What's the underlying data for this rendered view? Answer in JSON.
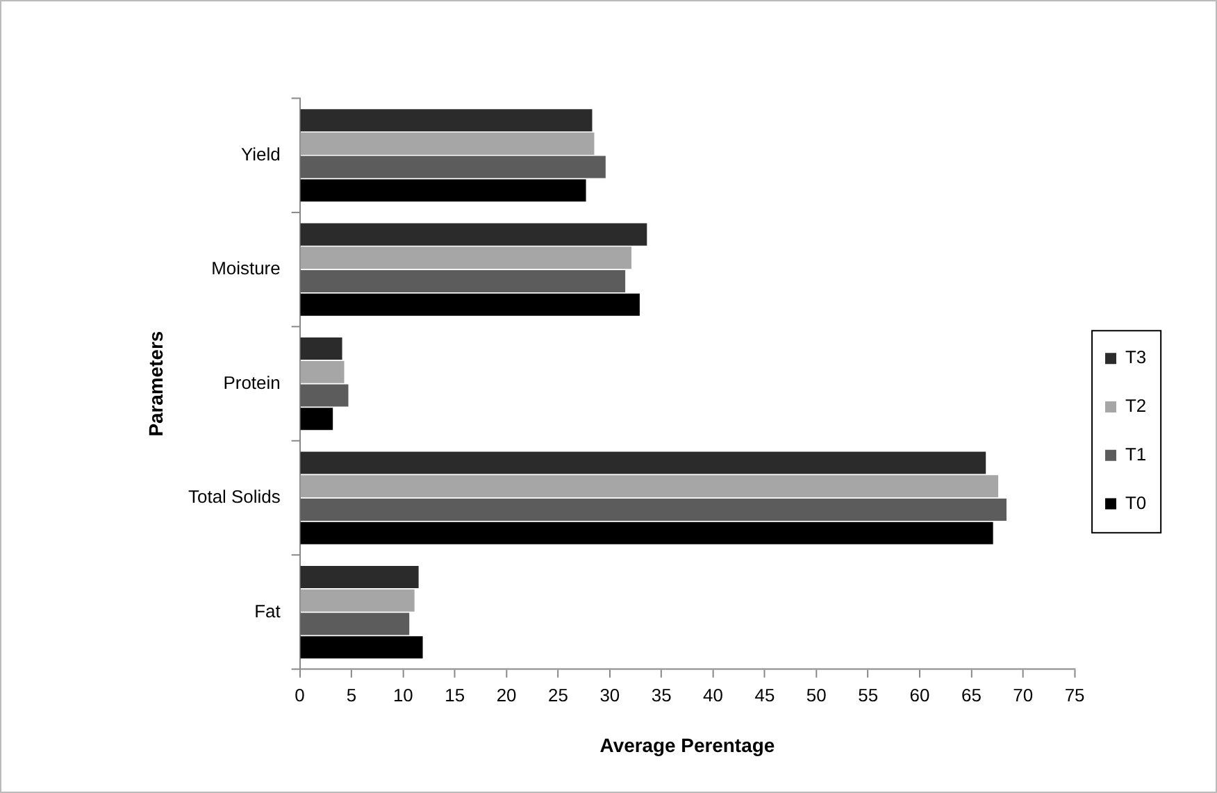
{
  "chart_data": {
    "type": "bar",
    "orientation": "horizontal",
    "xlabel": "Average Perentage",
    "ylabel": "Parameters",
    "categories": [
      "Yield",
      "Moisture",
      "Protein",
      "Total Solids",
      "Fat"
    ],
    "series": [
      {
        "name": "T3",
        "color": "#2b2b2b",
        "values": [
          28.3,
          33.6,
          4.1,
          66.4,
          11.5
        ]
      },
      {
        "name": "T2",
        "color": "#a6a6a6",
        "values": [
          28.5,
          32.1,
          4.3,
          67.6,
          11.1
        ]
      },
      {
        "name": "T1",
        "color": "#5c5c5c",
        "values": [
          29.6,
          31.5,
          4.7,
          68.4,
          10.6
        ]
      },
      {
        "name": "T0",
        "color": "#000000",
        "values": [
          27.7,
          32.9,
          3.2,
          67.1,
          11.9
        ]
      }
    ],
    "xlim": [
      0,
      75
    ],
    "xticks": [
      0,
      5,
      10,
      15,
      20,
      25,
      30,
      35,
      40,
      45,
      50,
      55,
      60,
      65,
      70,
      75
    ],
    "grid": false,
    "legend": "right"
  }
}
